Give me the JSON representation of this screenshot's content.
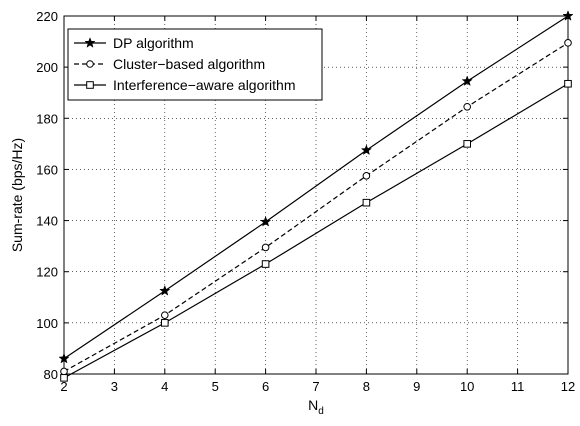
{
  "chart_data": {
    "type": "line",
    "title": "",
    "xlabel": "N",
    "xlabel_subscript": "d",
    "ylabel": "Sum-rate (bps/Hz)",
    "xlim": [
      2,
      12
    ],
    "ylim": [
      80,
      220
    ],
    "xticks": [
      2,
      3,
      4,
      5,
      6,
      7,
      8,
      9,
      10,
      11,
      12
    ],
    "yticks": [
      80,
      100,
      120,
      140,
      160,
      180,
      200,
      220
    ],
    "grid": true,
    "legend_position": "top-left",
    "series": [
      {
        "name": "DP algorithm",
        "line": "solid",
        "marker": "star",
        "color": "#000000",
        "x": [
          2,
          4,
          6,
          8,
          10,
          12
        ],
        "y": [
          86,
          112.5,
          139.5,
          167.5,
          194.5,
          220
        ]
      },
      {
        "name": "Cluster−based algorithm",
        "line": "dashed",
        "marker": "circle",
        "color": "#000000",
        "x": [
          2,
          4,
          6,
          8,
          10,
          12
        ],
        "y": [
          81,
          103,
          129.5,
          157.5,
          184.5,
          209.5
        ]
      },
      {
        "name": "Interference−aware algorithm",
        "line": "solid",
        "marker": "square",
        "color": "#000000",
        "x": [
          2,
          4,
          6,
          8,
          10,
          12
        ],
        "y": [
          78.5,
          100,
          123,
          147,
          170,
          193.5
        ]
      }
    ]
  }
}
